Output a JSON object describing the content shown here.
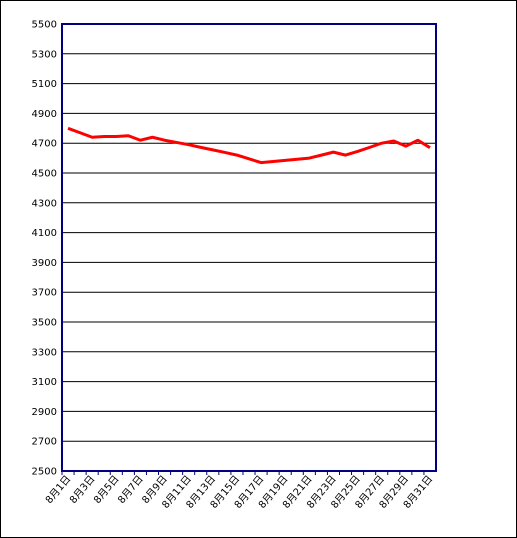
{
  "chart_data": {
    "type": "line",
    "categories": [
      "8月1日",
      null,
      "8月3日",
      null,
      "8月5日",
      null,
      "8月7日",
      null,
      "8月9日",
      null,
      "8月11日",
      null,
      "8月13日",
      null,
      "8月15日",
      null,
      "8月17日",
      null,
      "8月19日",
      null,
      "8月21日",
      null,
      "8月23日",
      null,
      "8月25日",
      null,
      "8月27日",
      null,
      "8月29日",
      null,
      "8月31日"
    ],
    "series": [
      {
        "color": "#ff0000",
        "values": [
          4800,
          4770,
          4740,
          4745,
          4745,
          4750,
          4720,
          4740,
          4720,
          4705,
          4690,
          4672,
          4655,
          4638,
          4620,
          4595,
          4570,
          4577,
          4585,
          4592,
          4600,
          4620,
          4640,
          4620,
          4645,
          4672,
          4700,
          4715,
          4680,
          4720,
          4670
        ]
      }
    ],
    "ylim": [
      2500,
      5500
    ],
    "yticks": [
      2500,
      2700,
      2900,
      3100,
      3300,
      3500,
      3700,
      3900,
      4100,
      4300,
      4500,
      4700,
      4900,
      5100,
      5300,
      5500
    ],
    "grid": true
  }
}
